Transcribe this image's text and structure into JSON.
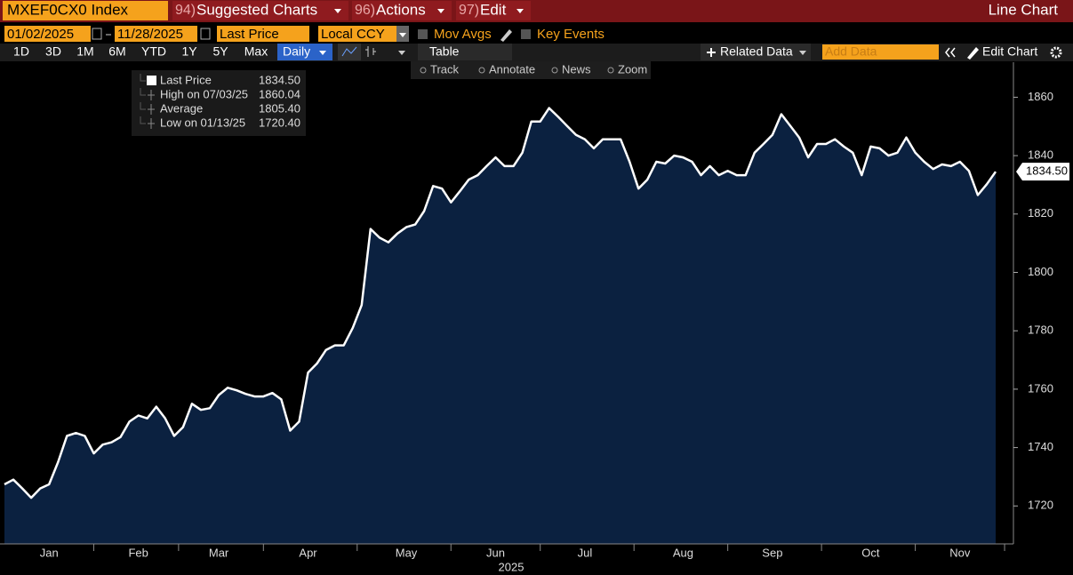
{
  "toolbar": {
    "ticker": "MXEF0CX0 Index",
    "menus": [
      {
        "num": "94)",
        "label": "Suggested Charts"
      },
      {
        "num": "96)",
        "label": "Actions"
      },
      {
        "num": "97)",
        "label": "Edit"
      }
    ],
    "chart_kind": "Line Chart"
  },
  "controls": {
    "start": "01/02/2025",
    "end": "11/28/2025",
    "field": "Last Price",
    "currency": "Local CCY",
    "toggles": [
      "Mov Avgs",
      "Key Events"
    ]
  },
  "ranges": [
    "1D",
    "3D",
    "1M",
    "6M",
    "YTD",
    "1Y",
    "5Y",
    "Max"
  ],
  "period": "Daily",
  "table": "Table",
  "related": "Related Data",
  "add_data": "Add Data",
  "edit_chart": "Edit Chart",
  "tools": [
    "Track",
    "Annotate",
    "News",
    "Zoom"
  ],
  "chart_data": {
    "type": "area",
    "categories": [
      null,
      null,
      null,
      null,
      null,
      "Jan",
      null,
      null,
      null,
      null,
      null,
      null,
      null,
      null,
      null,
      "Feb",
      null,
      null,
      null,
      null,
      null,
      null,
      null,
      null,
      "Mar",
      null,
      null,
      null,
      null,
      null,
      null,
      null,
      null,
      null,
      "Apr",
      null,
      null,
      null,
      null,
      null,
      null,
      null,
      null,
      null,
      null,
      "May",
      null,
      null,
      null,
      null,
      null,
      null,
      null,
      null,
      null,
      "Jun",
      null,
      null,
      null,
      null,
      null,
      null,
      null,
      null,
      null,
      "Jul",
      null,
      null,
      null,
      null,
      null,
      null,
      null,
      null,
      null,
      null,
      "Aug",
      null,
      null,
      null,
      null,
      null,
      null,
      null,
      null,
      null,
      "Sep",
      null,
      null,
      null,
      null,
      null,
      null,
      null,
      null,
      null,
      null,
      "Oct",
      null,
      null,
      null,
      null,
      null,
      null,
      null,
      null,
      null,
      "Nov",
      null,
      null,
      null,
      null
    ],
    "series": [
      {
        "name": "Last Price",
        "color": "#ffffff",
        "fill": "#0b2140",
        "values": [
          1727.4,
          1729,
          1726,
          1722.8,
          1726,
          1727.4,
          1735,
          1744,
          1745,
          1744,
          1738,
          1741,
          1741.8,
          1743.6,
          1748.9,
          1751,
          1750,
          1754,
          1750,
          1744,
          1747,
          1755,
          1752.9,
          1753.5,
          1758,
          1760.5,
          1759.6,
          1758.4,
          1757.5,
          1757.5,
          1758.7,
          1756.5,
          1745.8,
          1748.9,
          1765.7,
          1768.8,
          1773.4,
          1775,
          1775,
          1781,
          1788.8,
          1814.9,
          1811.9,
          1810.3,
          1813.3,
          1815.5,
          1816.4,
          1821,
          1829.6,
          1828.7,
          1824,
          1827.8,
          1831.8,
          1833.3,
          1836.4,
          1839.4,
          1836.4,
          1836.4,
          1841,
          1851.7,
          1851.7,
          1856.3,
          1853.3,
          1850.2,
          1847.1,
          1845.6,
          1842.5,
          1845.6,
          1845.6,
          1845.6,
          1837.9,
          1828.7,
          1831.8,
          1837.9,
          1837.3,
          1840,
          1839.4,
          1837.9,
          1833.3,
          1836.4,
          1833.3,
          1834.8,
          1833.3,
          1833.3,
          1841,
          1844,
          1847.1,
          1854.2,
          1850.2,
          1846.2,
          1839.4,
          1844,
          1844,
          1845.6,
          1843.1,
          1841,
          1833.3,
          1843.1,
          1842.5,
          1840,
          1841,
          1846.2,
          1841,
          1837.9,
          1835.4,
          1837,
          1836.4,
          1837.9,
          1834.8,
          1826.5,
          1830.2,
          1834.5
        ]
      }
    ],
    "ylim": [
      1707,
      1872
    ],
    "yticks": [
      1720,
      1740,
      1760,
      1780,
      1800,
      1820,
      1840,
      1860
    ],
    "xlabel": "2025",
    "last_label": "1834.50",
    "legend_rows": [
      {
        "label": "Last Price",
        "value": "1834.50"
      },
      {
        "label": "High on 07/03/25",
        "value": "1860.04"
      },
      {
        "label": "Average",
        "value": "1805.40"
      },
      {
        "label": "Low on 01/13/25",
        "value": "1720.40"
      }
    ]
  }
}
